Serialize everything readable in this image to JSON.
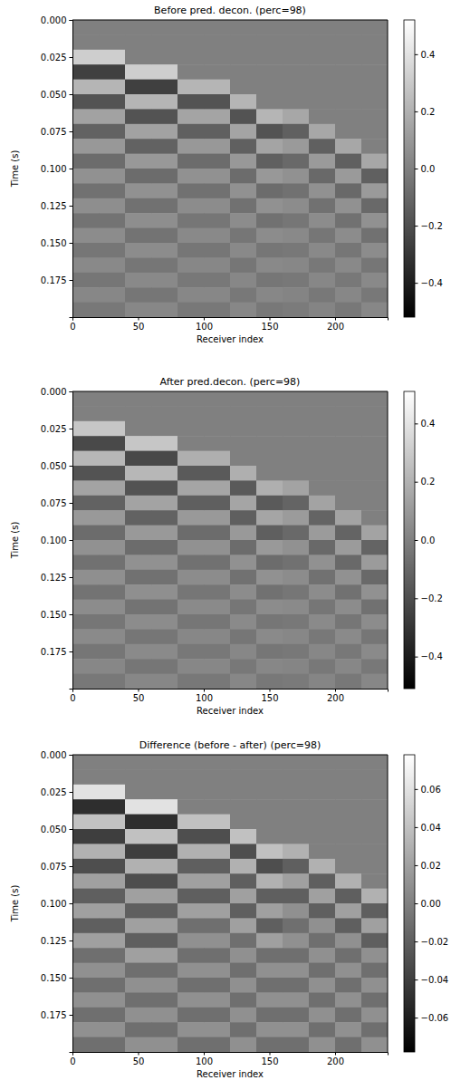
{
  "chart_data": [
    {
      "type": "heatmap",
      "title": "Before pred. decon. (perc=98)",
      "x_label": "Receiver index",
      "y_label": "Time (s)",
      "color": "gray",
      "x": [
        10,
        30,
        50,
        70,
        90,
        110,
        130,
        150,
        170,
        190,
        210,
        230
      ],
      "y": [
        0.005,
        0.015,
        0.025,
        0.035,
        0.045,
        0.055,
        0.065,
        0.075,
        0.085,
        0.095,
        0.105,
        0.115,
        0.125,
        0.135,
        0.145,
        0.155,
        0.165,
        0.175,
        0.185,
        0.195
      ],
      "cells": [
        [
          0,
          0,
          0.32,
          -0.26,
          0.22,
          -0.18,
          0.14,
          -0.12,
          0.1,
          -0.08,
          0.07,
          -0.06,
          0.06,
          -0.05,
          0.05,
          -0.04,
          0.04,
          -0.04,
          0.03,
          -0.03
        ],
        [
          0,
          0,
          0.32,
          -0.26,
          0.22,
          -0.18,
          0.14,
          -0.12,
          0.1,
          -0.08,
          0.07,
          -0.06,
          0.06,
          -0.05,
          0.05,
          -0.04,
          0.04,
          -0.04,
          0.03,
          -0.03
        ],
        [
          0,
          0,
          0,
          0.32,
          -0.26,
          0.22,
          -0.18,
          0.14,
          -0.12,
          0.1,
          -0.08,
          0.07,
          -0.06,
          0.06,
          -0.05,
          0.05,
          -0.04,
          0.04,
          -0.04,
          0.03
        ],
        [
          0,
          0,
          0,
          0.32,
          -0.26,
          0.22,
          -0.18,
          0.14,
          -0.12,
          0.1,
          -0.08,
          0.07,
          -0.06,
          0.06,
          -0.05,
          0.05,
          -0.04,
          0.04,
          -0.04,
          0.03
        ],
        [
          0,
          0,
          0,
          0,
          0.22,
          -0.18,
          0.15,
          -0.13,
          0.1,
          -0.08,
          0.07,
          -0.06,
          0.05,
          -0.04,
          0.04,
          -0.04,
          0.03,
          -0.03,
          0.03,
          -0.03
        ],
        [
          0,
          0,
          0,
          0,
          0.22,
          -0.18,
          0.15,
          -0.13,
          0.1,
          -0.08,
          0.07,
          -0.06,
          0.05,
          -0.04,
          0.04,
          -0.04,
          0.03,
          -0.03,
          0.03,
          -0.03
        ],
        [
          0,
          0,
          0,
          0,
          0,
          0.22,
          -0.18,
          0.15,
          -0.13,
          0.1,
          -0.08,
          0.07,
          -0.06,
          0.05,
          -0.04,
          0.04,
          -0.04,
          0.03,
          -0.03,
          0.03
        ],
        [
          0,
          0,
          0,
          0,
          0,
          0,
          0.22,
          -0.18,
          0.15,
          -0.13,
          0.1,
          -0.08,
          0.07,
          -0.06,
          0.05,
          -0.04,
          0.04,
          -0.04,
          0.03,
          -0.03
        ],
        [
          0,
          0,
          0,
          0,
          0,
          0,
          0.16,
          -0.13,
          0.11,
          -0.09,
          0.07,
          -0.06,
          0.05,
          -0.04,
          0.04,
          -0.03,
          0.03,
          -0.03,
          0.02,
          -0.02
        ],
        [
          0,
          0,
          0,
          0,
          0,
          0,
          0,
          0.16,
          -0.13,
          0.11,
          -0.09,
          0.07,
          -0.06,
          0.05,
          -0.04,
          0.04,
          -0.03,
          0.03,
          -0.03,
          0.02
        ],
        [
          0,
          0,
          0,
          0,
          0,
          0,
          0,
          0,
          0.16,
          -0.13,
          0.11,
          -0.09,
          0.07,
          -0.06,
          0.05,
          -0.04,
          0.04,
          -0.03,
          0.03,
          -0.03
        ],
        [
          0,
          0,
          0,
          0,
          0,
          0,
          0,
          0,
          0,
          0.16,
          -0.13,
          0.11,
          -0.09,
          0.07,
          -0.06,
          0.05,
          -0.04,
          0.04,
          -0.03,
          0.03
        ]
      ],
      "xlim": [
        0,
        240
      ],
      "ylim": [
        0,
        0.2
      ],
      "xticks": [
        0,
        50,
        100,
        150,
        200
      ],
      "yticks": [
        {
          "value": 0,
          "label": "0.000"
        },
        {
          "value": 0.025,
          "label": "0.025"
        },
        {
          "value": 0.05,
          "label": "0.050"
        },
        {
          "value": 0.075,
          "label": "0.075"
        },
        {
          "value": 0.1,
          "label": "0.100"
        },
        {
          "value": 0.125,
          "label": "0.125"
        },
        {
          "value": 0.15,
          "label": "0.150"
        },
        {
          "value": 0.175,
          "label": "0.175"
        }
      ],
      "zlim": [
        -0.52,
        0.52
      ],
      "zticks": [
        {
          "value": -0.4,
          "label": "−0.4"
        },
        {
          "value": -0.2,
          "label": "−0.2"
        },
        {
          "value": 0,
          "label": "0.0"
        },
        0.2,
        0.4
      ]
    },
    {
      "type": "heatmap",
      "title": "After pred.decon. (perc=98)",
      "x_label": "Receiver index",
      "y_label": "Time (s)",
      "color": "gray",
      "x": [
        10,
        30,
        50,
        70,
        90,
        110,
        130,
        150,
        170,
        190,
        210,
        230
      ],
      "y": [
        0.005,
        0.015,
        0.025,
        0.035,
        0.045,
        0.055,
        0.065,
        0.075,
        0.085,
        0.095,
        0.105,
        0.115,
        0.125,
        0.135,
        0.145,
        0.155,
        0.165,
        0.175,
        0.185,
        0.195
      ],
      "cells": [
        [
          0,
          0,
          0.28,
          -0.22,
          0.22,
          -0.18,
          0.14,
          -0.12,
          0.1,
          -0.08,
          0.07,
          -0.06,
          0.06,
          -0.05,
          0.05,
          -0.04,
          0.04,
          -0.04,
          0.03,
          -0.03
        ],
        [
          0,
          0,
          0.28,
          -0.22,
          0.22,
          -0.18,
          0.14,
          -0.12,
          0.1,
          -0.08,
          0.07,
          -0.06,
          0.06,
          -0.05,
          0.05,
          -0.04,
          0.04,
          -0.04,
          0.03,
          -0.03
        ],
        [
          0,
          0,
          0,
          0.28,
          -0.22,
          0.22,
          -0.18,
          0.14,
          -0.12,
          0.1,
          -0.08,
          0.07,
          -0.06,
          0.06,
          -0.05,
          0.05,
          -0.04,
          0.04,
          -0.04,
          0.03
        ],
        [
          0,
          0,
          0,
          0.28,
          -0.22,
          0.22,
          -0.18,
          0.14,
          -0.12,
          0.1,
          -0.08,
          0.07,
          -0.06,
          0.06,
          -0.05,
          0.05,
          -0.04,
          0.04,
          -0.04,
          0.03
        ],
        [
          0,
          0,
          0,
          0,
          0.19,
          -0.15,
          0.15,
          -0.13,
          0.1,
          -0.08,
          0.07,
          -0.06,
          0.05,
          -0.04,
          0.04,
          -0.04,
          0.03,
          -0.03,
          0.03,
          -0.03
        ],
        [
          0,
          0,
          0,
          0,
          0.19,
          -0.15,
          0.15,
          -0.13,
          0.1,
          -0.08,
          0.07,
          -0.06,
          0.05,
          -0.04,
          0.04,
          -0.04,
          0.03,
          -0.03,
          0.03,
          -0.03
        ],
        [
          0,
          0,
          0,
          0,
          0,
          0.19,
          -0.15,
          0.15,
          -0.13,
          0.1,
          -0.08,
          0.07,
          -0.06,
          0.05,
          -0.04,
          0.04,
          -0.04,
          0.03,
          -0.03,
          0.03
        ],
        [
          0,
          0,
          0,
          0,
          0,
          0,
          0.19,
          -0.15,
          0.15,
          -0.13,
          0.1,
          -0.08,
          0.07,
          -0.06,
          0.05,
          -0.04,
          0.04,
          -0.04,
          0.03,
          -0.03
        ],
        [
          0,
          0,
          0,
          0,
          0,
          0,
          0.14,
          -0.11,
          0.11,
          -0.09,
          0.07,
          -0.06,
          0.05,
          -0.04,
          0.04,
          -0.03,
          0.03,
          -0.03,
          0.02,
          -0.02
        ],
        [
          0,
          0,
          0,
          0,
          0,
          0,
          0,
          0.14,
          -0.11,
          0.11,
          -0.09,
          0.07,
          -0.06,
          0.05,
          -0.04,
          0.04,
          -0.03,
          0.03,
          -0.03,
          0.02
        ],
        [
          0,
          0,
          0,
          0,
          0,
          0,
          0,
          0,
          0.14,
          -0.11,
          0.11,
          -0.09,
          0.07,
          -0.06,
          0.05,
          -0.04,
          0.04,
          -0.03,
          0.03,
          -0.03
        ],
        [
          0,
          0,
          0,
          0,
          0,
          0,
          0,
          0,
          0,
          0.14,
          -0.11,
          0.11,
          -0.09,
          0.07,
          -0.06,
          0.05,
          -0.04,
          0.04,
          -0.03,
          0.03
        ]
      ],
      "xlim": [
        0,
        240
      ],
      "ylim": [
        0,
        0.2
      ],
      "xticks": [
        0,
        50,
        100,
        150,
        200
      ],
      "yticks": [
        {
          "value": 0,
          "label": "0.000"
        },
        {
          "value": 0.025,
          "label": "0.025"
        },
        {
          "value": 0.05,
          "label": "0.050"
        },
        {
          "value": 0.075,
          "label": "0.075"
        },
        {
          "value": 0.1,
          "label": "0.100"
        },
        {
          "value": 0.125,
          "label": "0.125"
        },
        {
          "value": 0.15,
          "label": "0.150"
        },
        {
          "value": 0.175,
          "label": "0.175"
        }
      ],
      "zlim": [
        -0.51,
        0.51
      ],
      "zticks": [
        {
          "value": -0.4,
          "label": "−0.4"
        },
        {
          "value": -0.2,
          "label": "−0.2"
        },
        {
          "value": 0,
          "label": "0.0"
        },
        0.2,
        0.4
      ]
    },
    {
      "type": "heatmap",
      "title": "Difference (before - after) (perc=98)",
      "x_label": "Receiver index",
      "y_label": "Time (s)",
      "color": "gray",
      "x": [
        10,
        30,
        50,
        70,
        90,
        110,
        130,
        150,
        170,
        190,
        210,
        230
      ],
      "y": [
        0.005,
        0.015,
        0.025,
        0.035,
        0.045,
        0.055,
        0.065,
        0.075,
        0.085,
        0.095,
        0.105,
        0.115,
        0.125,
        0.135,
        0.145,
        0.155,
        0.165,
        0.175,
        0.185,
        0.195
      ],
      "cells": [
        [
          0,
          0,
          0.06,
          -0.05,
          0.04,
          -0.04,
          0.03,
          -0.03,
          0.02,
          -0.02,
          0.02,
          -0.02,
          0.02,
          -0.01,
          0.01,
          -0.01,
          0.01,
          -0.01,
          0.01,
          -0.01
        ],
        [
          0,
          0,
          0.06,
          -0.05,
          0.04,
          -0.04,
          0.03,
          -0.03,
          0.02,
          -0.02,
          0.02,
          -0.02,
          0.02,
          -0.01,
          0.01,
          -0.01,
          0.01,
          -0.01,
          0.01,
          -0.01
        ],
        [
          0,
          0,
          0,
          0.06,
          -0.05,
          0.04,
          -0.04,
          0.03,
          -0.03,
          0.02,
          -0.02,
          0.02,
          -0.02,
          0.02,
          -0.01,
          0.01,
          -0.01,
          0.01,
          -0.01,
          0.01
        ],
        [
          0,
          0,
          0,
          0.06,
          -0.05,
          0.04,
          -0.04,
          0.03,
          -0.03,
          0.02,
          -0.02,
          0.02,
          -0.02,
          0.02,
          -0.01,
          0.01,
          -0.01,
          0.01,
          -0.01,
          0.01
        ],
        [
          0,
          0,
          0,
          0,
          0.04,
          -0.03,
          0.03,
          -0.02,
          0.02,
          -0.02,
          0.02,
          -0.01,
          0.01,
          -0.01,
          0.01,
          -0.01,
          0.01,
          -0.01,
          0.01,
          -0.01
        ],
        [
          0,
          0,
          0,
          0,
          0.04,
          -0.03,
          0.03,
          -0.02,
          0.02,
          -0.02,
          0.02,
          -0.01,
          0.01,
          -0.01,
          0.01,
          -0.01,
          0.01,
          -0.01,
          0.01,
          -0.01
        ],
        [
          0,
          0,
          0,
          0,
          0,
          0.04,
          -0.03,
          0.03,
          -0.02,
          0.02,
          -0.02,
          0.02,
          -0.01,
          0.01,
          -0.01,
          0.01,
          -0.01,
          0.01,
          -0.01,
          0.01
        ],
        [
          0,
          0,
          0,
          0,
          0,
          0,
          0.04,
          -0.03,
          0.03,
          -0.02,
          0.02,
          -0.02,
          0.02,
          -0.01,
          0.01,
          -0.01,
          0.01,
          -0.01,
          0.01,
          -0.01
        ],
        [
          0,
          0,
          0,
          0,
          0,
          0,
          0.03,
          -0.02,
          0.02,
          -0.02,
          0.01,
          -0.01,
          0.01,
          -0.01,
          0.01,
          -0.01,
          0.01,
          -0.01,
          0.01,
          -0.01
        ],
        [
          0,
          0,
          0,
          0,
          0,
          0,
          0,
          0.03,
          -0.02,
          0.02,
          -0.02,
          0.01,
          -0.01,
          0.01,
          -0.01,
          0.01,
          -0.01,
          0.01,
          -0.01,
          0.01
        ],
        [
          0,
          0,
          0,
          0,
          0,
          0,
          0,
          0,
          0.03,
          -0.02,
          0.02,
          -0.02,
          0.01,
          -0.01,
          0.01,
          -0.01,
          0.01,
          -0.01,
          0.01,
          -0.01
        ],
        [
          0,
          0,
          0,
          0,
          0,
          0,
          0,
          0,
          0,
          0.03,
          -0.02,
          0.02,
          -0.02,
          0.01,
          -0.01,
          0.01,
          -0.01,
          0.01,
          -0.01,
          0.01
        ]
      ],
      "xlim": [
        0,
        240
      ],
      "ylim": [
        0,
        0.2
      ],
      "xticks": [
        0,
        50,
        100,
        150,
        200
      ],
      "yticks": [
        {
          "value": 0,
          "label": "0.000"
        },
        {
          "value": 0.025,
          "label": "0.025"
        },
        {
          "value": 0.05,
          "label": "0.050"
        },
        {
          "value": 0.075,
          "label": "0.075"
        },
        {
          "value": 0.1,
          "label": "0.100"
        },
        {
          "value": 0.125,
          "label": "0.125"
        },
        {
          "value": 0.15,
          "label": "0.150"
        },
        {
          "value": 0.175,
          "label": "0.175"
        }
      ],
      "zlim": [
        -0.078,
        0.078
      ],
      "zticks": [
        {
          "value": -0.06,
          "label": "−0.06"
        },
        {
          "value": -0.04,
          "label": "−0.04"
        },
        {
          "value": -0.02,
          "label": "−0.02"
        },
        {
          "value": 0,
          "label": "0.00"
        },
        0.02,
        0.04,
        0.06
      ]
    }
  ]
}
